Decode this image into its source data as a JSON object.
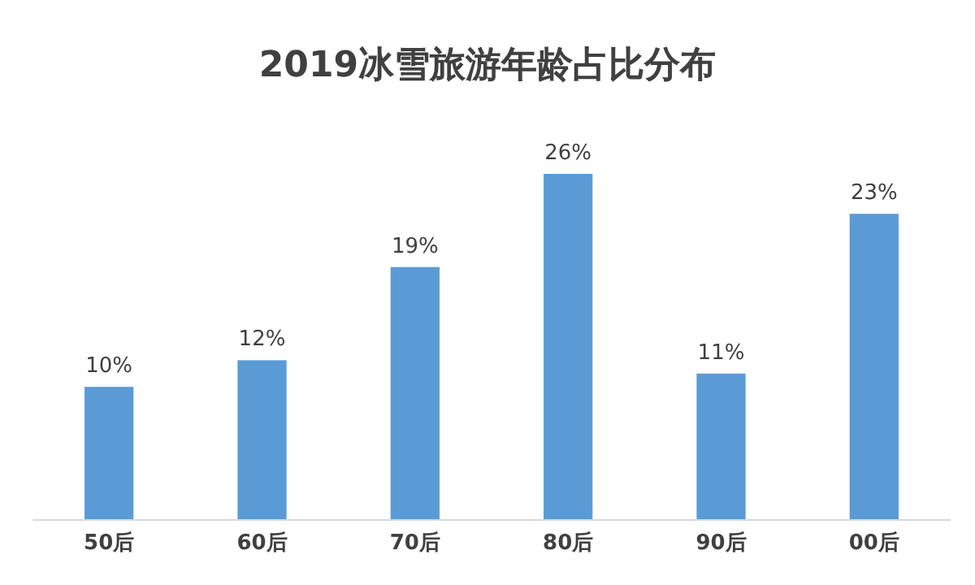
{
  "chart_data": {
    "type": "bar",
    "title": "2019冰雪旅游年龄占比分布",
    "categories": [
      "50后",
      "60后",
      "70后",
      "80后",
      "90后",
      "00后"
    ],
    "values": [
      10,
      12,
      19,
      26,
      11,
      23
    ],
    "value_labels": [
      "10%",
      "12%",
      "19%",
      "26%",
      "11%",
      "23%"
    ],
    "color": "#5b9bd5"
  }
}
